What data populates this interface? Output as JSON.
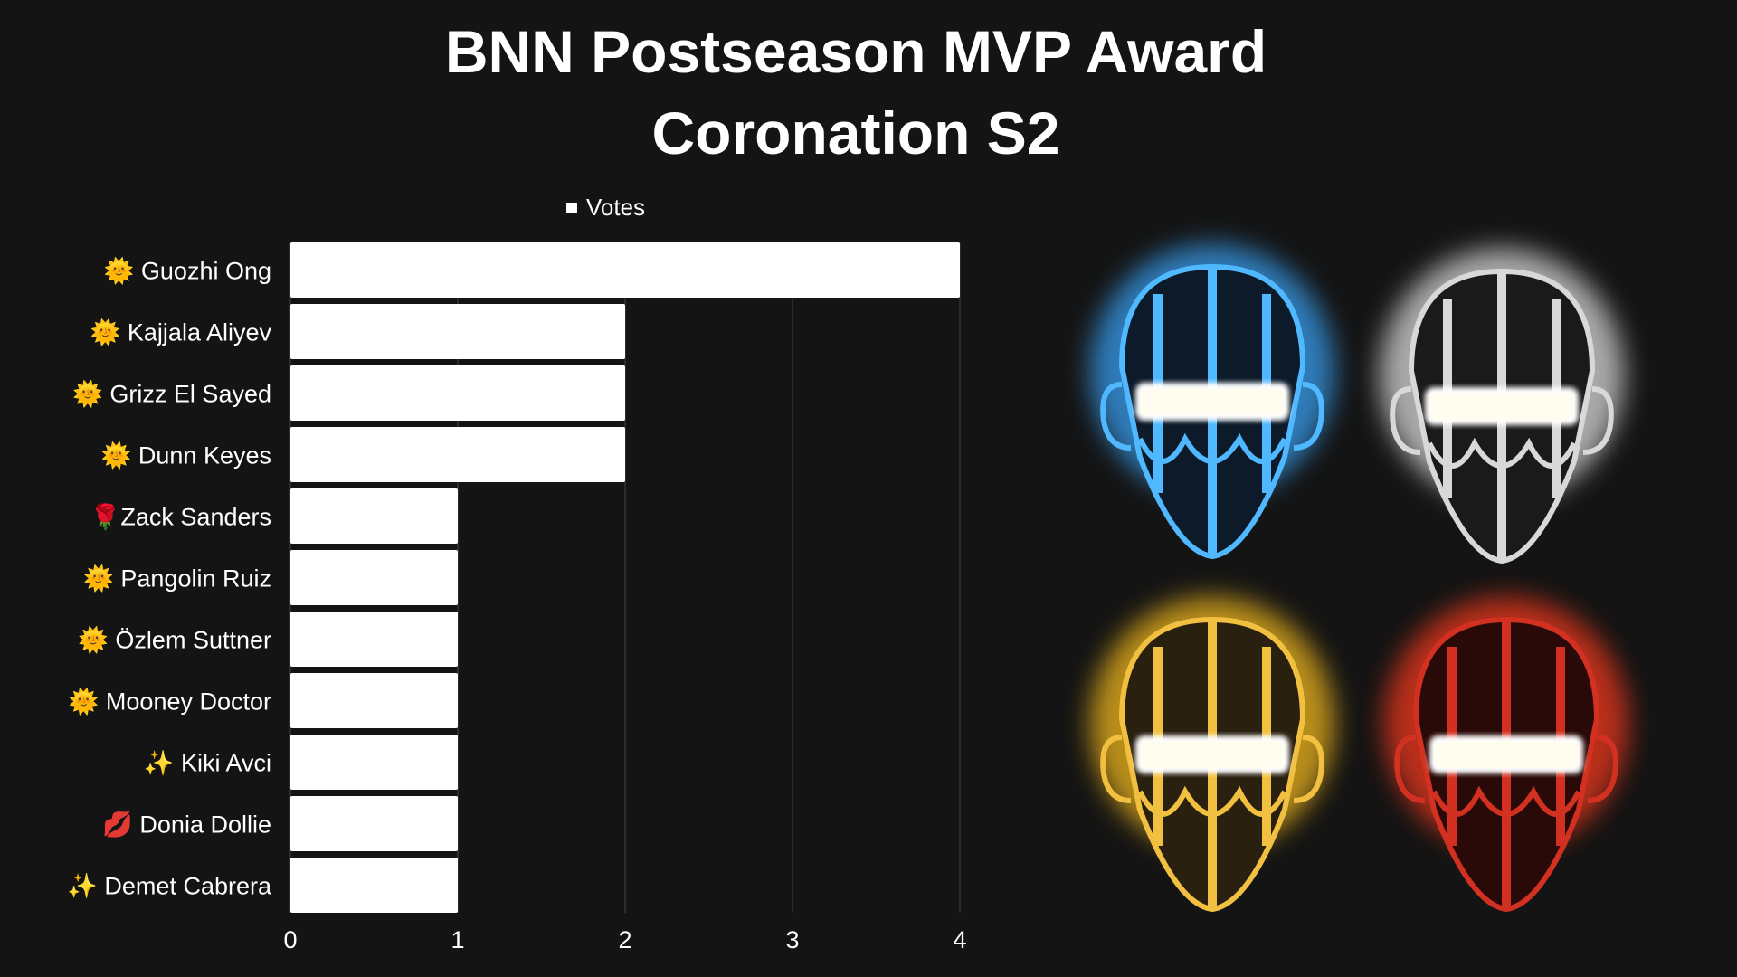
{
  "chart_data": {
    "type": "bar",
    "orientation": "horizontal",
    "title": "BNN Postseason MVP Award",
    "subtitle": "Coronation S2",
    "legend": [
      "Votes"
    ],
    "legend_placement": "top",
    "categories": [
      "🌞 Guozhi Ong",
      "🌞 Kajjala Aliyev",
      "🌞 Grizz El Sayed",
      "🌞 Dunn Keyes",
      "🌹Zack Sanders",
      "🌞 Pangolin Ruiz",
      "🌞 Özlem Suttner",
      "🌞 Mooney Doctor",
      "✨ Kiki Avci",
      "💋 Donia Dollie",
      "✨ Demet Cabrera"
    ],
    "series": [
      {
        "name": "Votes",
        "values": [
          4,
          2,
          2,
          2,
          1,
          1,
          1,
          1,
          1,
          1,
          1
        ]
      }
    ],
    "xlim": [
      0,
      4
    ],
    "xticks": [
      "0",
      "1",
      "2",
      "3",
      "4"
    ],
    "grid": true,
    "bar_color": "#ffffff",
    "grid_color": "#444444"
  }
}
